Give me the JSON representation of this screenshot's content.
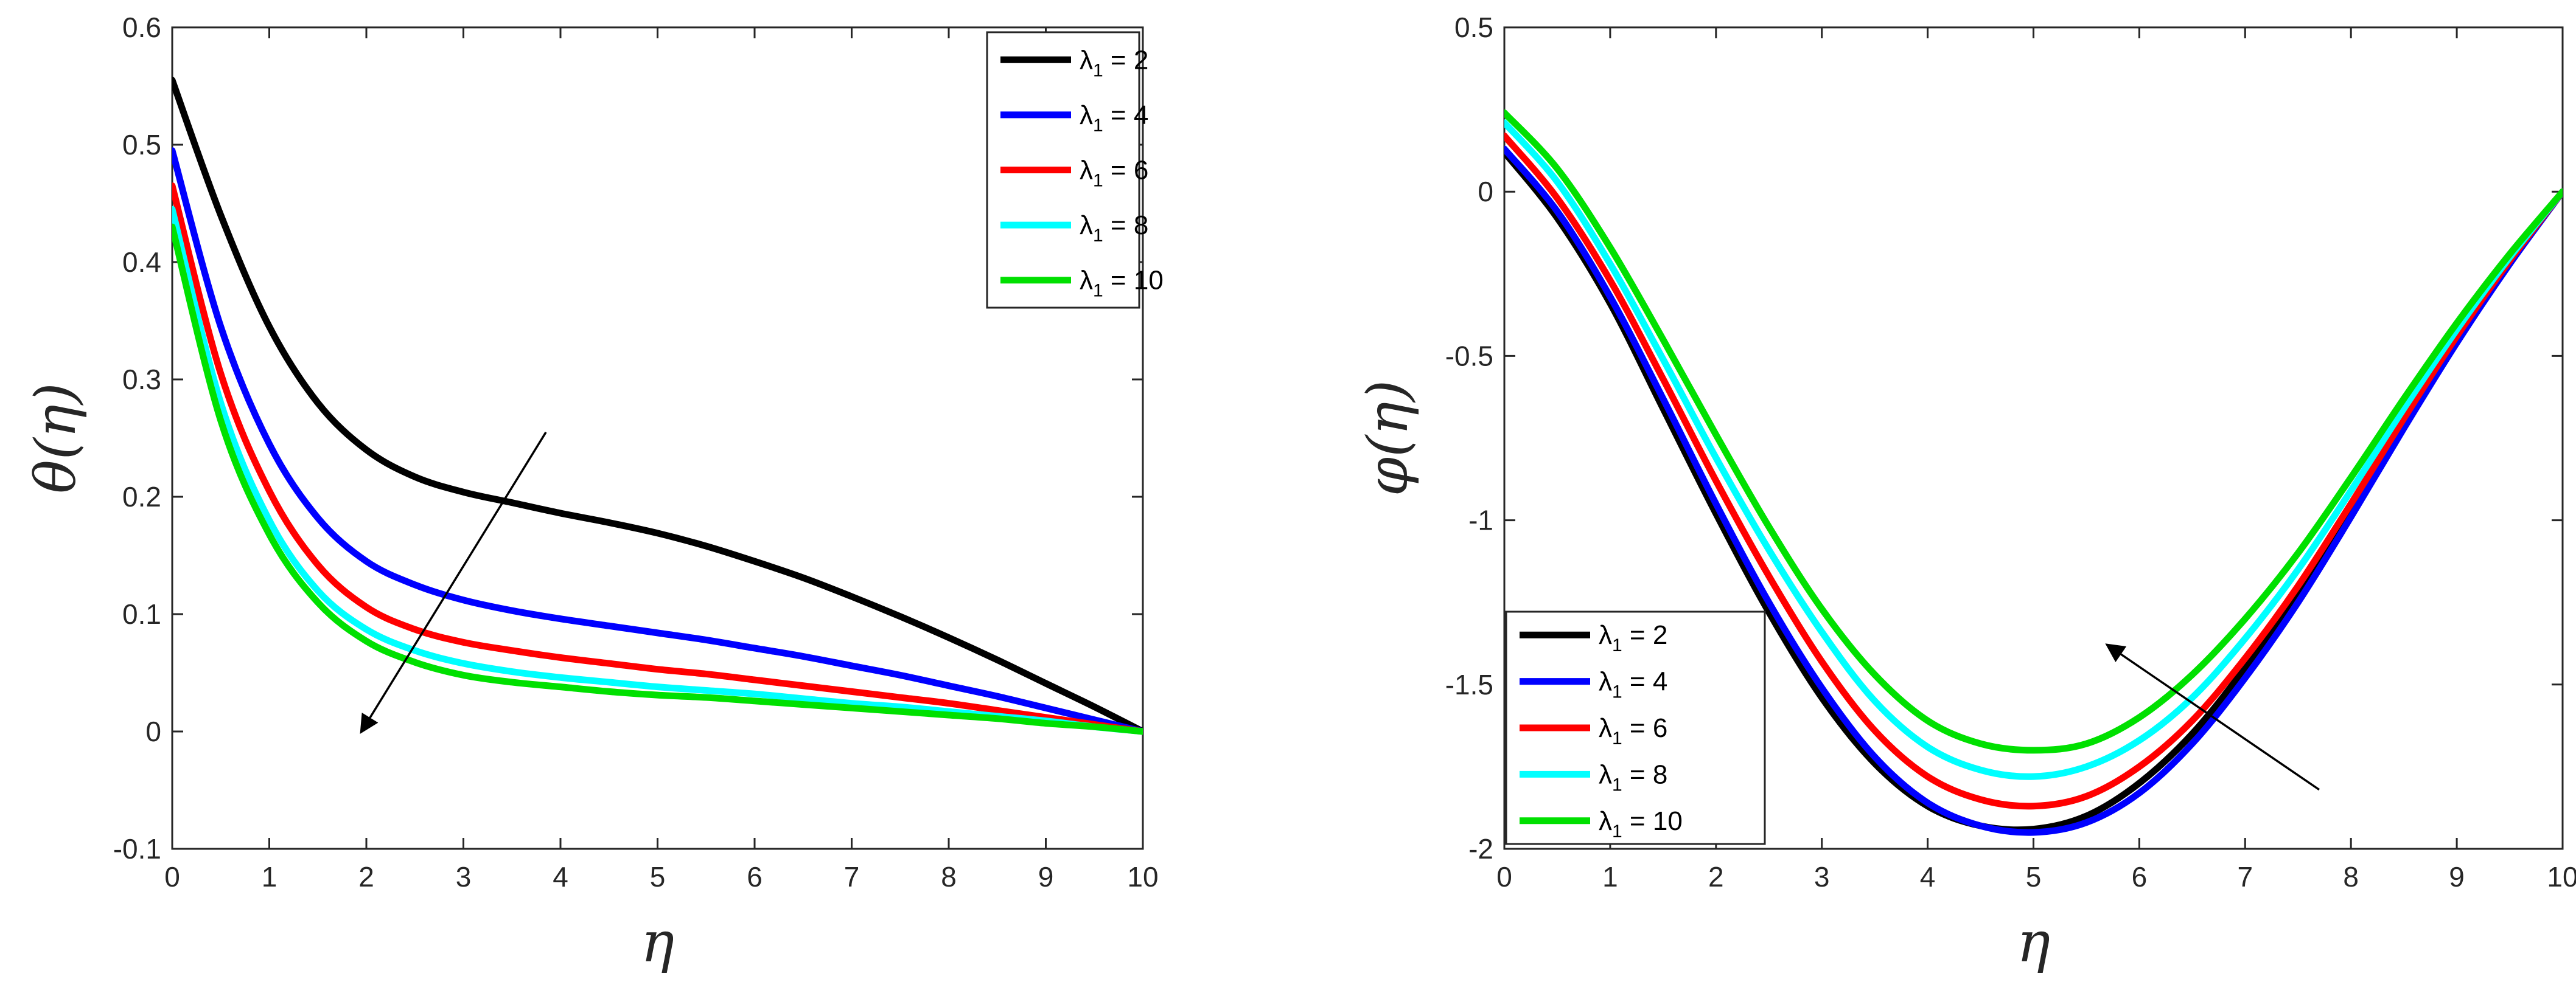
{
  "chart_data": [
    {
      "type": "line",
      "title": "",
      "xlabel": "η",
      "ylabel": "θ(η)",
      "xlim": [
        0,
        10
      ],
      "ylim": [
        -0.1,
        0.6
      ],
      "xticks": [
        "0",
        "1",
        "2",
        "3",
        "4",
        "5",
        "6",
        "7",
        "8",
        "9",
        "10"
      ],
      "yticks": [
        "-0.1",
        "0",
        "0.1",
        "0.2",
        "0.3",
        "0.4",
        "0.5",
        "0.6"
      ],
      "grid": false,
      "legend_position": "top-right",
      "x": [
        0,
        0.5,
        1,
        1.5,
        2,
        2.5,
        3,
        3.5,
        4,
        4.5,
        5,
        5.5,
        6,
        6.5,
        7,
        7.5,
        8,
        8.5,
        9,
        9.5,
        10
      ],
      "series": [
        {
          "name": "2",
          "color": "#000000",
          "values": [
            0.555,
            0.44,
            0.345,
            0.28,
            0.24,
            0.217,
            0.204,
            0.195,
            0.186,
            0.178,
            0.169,
            0.158,
            0.145,
            0.131,
            0.115,
            0.098,
            0.08,
            0.061,
            0.041,
            0.021,
            0.0
          ]
        },
        {
          "name": "4",
          "color": "#0000ff",
          "values": [
            0.495,
            0.345,
            0.245,
            0.182,
            0.145,
            0.125,
            0.112,
            0.103,
            0.096,
            0.09,
            0.084,
            0.078,
            0.071,
            0.064,
            0.056,
            0.048,
            0.039,
            0.03,
            0.02,
            0.01,
            0.0
          ]
        },
        {
          "name": "6",
          "color": "#ff0000",
          "values": [
            0.465,
            0.305,
            0.205,
            0.142,
            0.106,
            0.087,
            0.076,
            0.069,
            0.063,
            0.058,
            0.053,
            0.049,
            0.044,
            0.039,
            0.034,
            0.029,
            0.024,
            0.018,
            0.012,
            0.006,
            0.0
          ]
        },
        {
          "name": "8",
          "color": "#00ffff",
          "values": [
            0.445,
            0.28,
            0.18,
            0.12,
            0.087,
            0.069,
            0.058,
            0.051,
            0.046,
            0.042,
            0.038,
            0.035,
            0.032,
            0.028,
            0.024,
            0.021,
            0.017,
            0.013,
            0.009,
            0.004,
            0.0
          ]
        },
        {
          "name": "10",
          "color": "#00e000",
          "values": [
            0.43,
            0.265,
            0.168,
            0.11,
            0.077,
            0.059,
            0.048,
            0.042,
            0.038,
            0.034,
            0.031,
            0.029,
            0.026,
            0.023,
            0.02,
            0.017,
            0.014,
            0.011,
            0.007,
            0.004,
            0.0
          ]
        }
      ],
      "legend_symbol": "λ",
      "legend_subscript": "1",
      "legend_prefix": " = "
    },
    {
      "type": "line",
      "title": "",
      "xlabel": "η",
      "ylabel": "φ(η)",
      "xlim": [
        0,
        10
      ],
      "ylim": [
        -2,
        0.5
      ],
      "xticks": [
        "0",
        "1",
        "2",
        "3",
        "4",
        "5",
        "6",
        "7",
        "8",
        "9",
        "10"
      ],
      "yticks": [
        "-2",
        "-1.5",
        "-1",
        "-0.5",
        "0",
        "0.5"
      ],
      "grid": false,
      "legend_position": "bottom-left",
      "x": [
        0,
        0.5,
        1,
        1.5,
        2,
        2.5,
        3,
        3.5,
        4,
        4.5,
        5,
        5.5,
        6,
        6.5,
        7,
        7.5,
        8,
        8.5,
        9,
        9.5,
        10
      ],
      "series": [
        {
          "name": "2",
          "color": "#000000",
          "values": [
            0.12,
            -0.08,
            -0.34,
            -0.66,
            -0.98,
            -1.28,
            -1.54,
            -1.74,
            -1.87,
            -1.93,
            -1.94,
            -1.9,
            -1.8,
            -1.65,
            -1.45,
            -1.22,
            -0.96,
            -0.7,
            -0.45,
            -0.21,
            0.0
          ]
        },
        {
          "name": "4",
          "color": "#0000ff",
          "values": [
            0.13,
            -0.06,
            -0.32,
            -0.63,
            -0.95,
            -1.25,
            -1.51,
            -1.72,
            -1.86,
            -1.93,
            -1.95,
            -1.92,
            -1.83,
            -1.68,
            -1.48,
            -1.25,
            -0.99,
            -0.72,
            -0.46,
            -0.22,
            0.0
          ]
        },
        {
          "name": "6",
          "color": "#ff0000",
          "values": [
            0.17,
            -0.02,
            -0.27,
            -0.57,
            -0.88,
            -1.17,
            -1.43,
            -1.64,
            -1.78,
            -1.85,
            -1.87,
            -1.84,
            -1.75,
            -1.61,
            -1.42,
            -1.2,
            -0.95,
            -0.69,
            -0.44,
            -0.21,
            0.0
          ]
        },
        {
          "name": "8",
          "color": "#00ffff",
          "values": [
            0.21,
            0.03,
            -0.22,
            -0.51,
            -0.81,
            -1.09,
            -1.34,
            -1.55,
            -1.69,
            -1.76,
            -1.78,
            -1.75,
            -1.67,
            -1.54,
            -1.36,
            -1.15,
            -0.91,
            -0.66,
            -0.42,
            -0.2,
            0.0
          ]
        },
        {
          "name": "10",
          "color": "#00e000",
          "values": [
            0.24,
            0.07,
            -0.17,
            -0.45,
            -0.74,
            -1.02,
            -1.27,
            -1.47,
            -1.61,
            -1.68,
            -1.7,
            -1.68,
            -1.6,
            -1.47,
            -1.3,
            -1.1,
            -0.87,
            -0.63,
            -0.4,
            -0.19,
            0.0
          ]
        }
      ],
      "legend_symbol": "λ",
      "legend_subscript": "1",
      "legend_prefix": " = "
    }
  ],
  "arrows": [
    {
      "from": [
        3.85,
        0.255
      ],
      "to": [
        1.95,
        0.0
      ]
    },
    {
      "from": [
        7.7,
        -1.82
      ],
      "to": [
        5.7,
        -1.38
      ]
    }
  ]
}
